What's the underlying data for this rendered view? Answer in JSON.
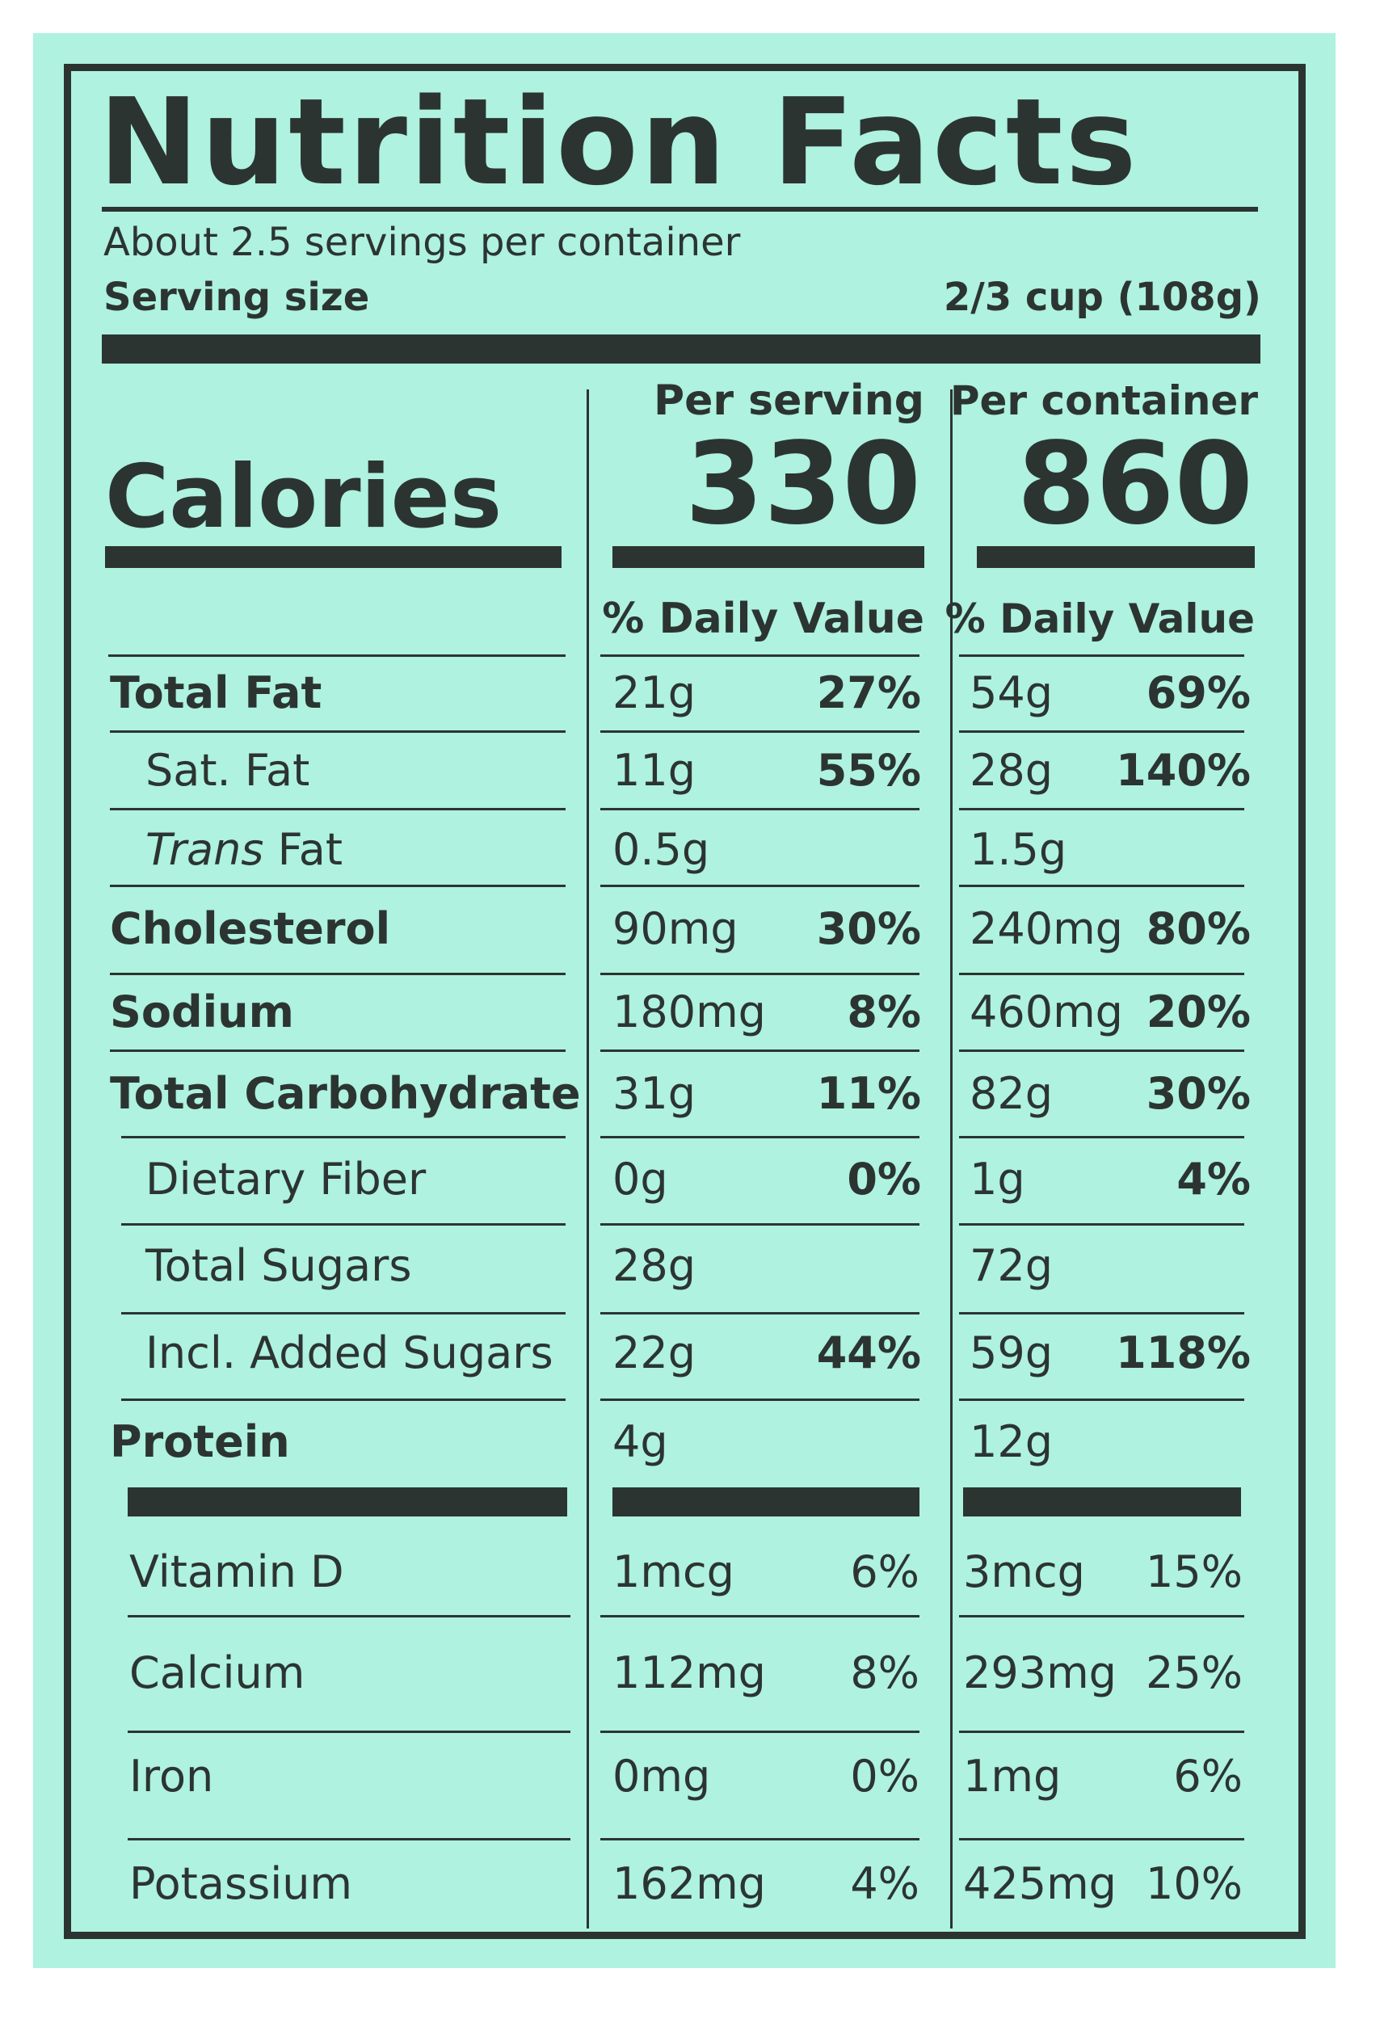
{
  "title": "Nutrition Facts",
  "servings": "About 2.5 servings per container",
  "serving_size_label": "Serving size",
  "serving_size_value": "2/3 cup (108g)",
  "per_serving_label": "Per serving",
  "per_container_label": "Per container",
  "calories_label": "Calories",
  "calories_per_serving": "330",
  "calories_per_container": "860",
  "dv_header_serving": "% Daily Value",
  "dv_header_container": "% Daily Value",
  "colors": {
    "background": "#aef2df",
    "ink": "#2c3431"
  },
  "nutrients": [
    {
      "label": "Total Fat",
      "bold": true,
      "indent": 0,
      "serving_amount": "21g",
      "serving_dv": "27%",
      "container_amount": "54g",
      "container_dv": "69%"
    },
    {
      "label": "Sat. Fat",
      "bold": false,
      "indent": 1,
      "serving_amount": "11g",
      "serving_dv": "55%",
      "container_amount": "28g",
      "container_dv": "140%"
    },
    {
      "label": "Trans Fat",
      "italic_prefix": "Trans",
      "bold": false,
      "indent": 1,
      "serving_amount": "0.5g",
      "serving_dv": "",
      "container_amount": "1.5g",
      "container_dv": ""
    },
    {
      "label": "Cholesterol",
      "bold": true,
      "indent": 0,
      "serving_amount": "90mg",
      "serving_dv": "30%",
      "container_amount": "240mg",
      "container_dv": "80%"
    },
    {
      "label": "Sodium",
      "bold": true,
      "indent": 0,
      "serving_amount": "180mg",
      "serving_dv": "8%",
      "container_amount": "460mg",
      "container_dv": "20%"
    },
    {
      "label": "Total Carbohydrate",
      "bold": true,
      "indent": 0,
      "serving_amount": "31g",
      "serving_dv": "11%",
      "container_amount": "82g",
      "container_dv": "30%"
    },
    {
      "label": "Dietary Fiber",
      "bold": false,
      "indent": 1,
      "serving_amount": "0g",
      "serving_dv": "0%",
      "container_amount": "1g",
      "container_dv": "4%"
    },
    {
      "label": "Total Sugars",
      "bold": false,
      "indent": 1,
      "serving_amount": "28g",
      "serving_dv": "",
      "container_amount": "72g",
      "container_dv": ""
    },
    {
      "label": "Incl. Added Sugars",
      "bold": false,
      "indent": 1,
      "serving_amount": "22g",
      "serving_dv": "44%",
      "container_amount": "59g",
      "container_dv": "118%"
    },
    {
      "label": "Protein",
      "bold": true,
      "indent": 0,
      "serving_amount": "4g",
      "serving_dv": "",
      "container_amount": "12g",
      "container_dv": ""
    }
  ],
  "vitamins": [
    {
      "label": "Vitamin D",
      "serving_amount": "1mcg",
      "serving_dv": "6%",
      "container_amount": "3mcg",
      "container_dv": "15%"
    },
    {
      "label": "Calcium",
      "serving_amount": "112mg",
      "serving_dv": "8%",
      "container_amount": "293mg",
      "container_dv": "25%"
    },
    {
      "label": "Iron",
      "serving_amount": "0mg",
      "serving_dv": "0%",
      "container_amount": "1mg",
      "container_dv": "6%"
    },
    {
      "label": "Potassium",
      "serving_amount": "162mg",
      "serving_dv": "4%",
      "container_amount": "425mg",
      "container_dv": "10%"
    }
  ]
}
